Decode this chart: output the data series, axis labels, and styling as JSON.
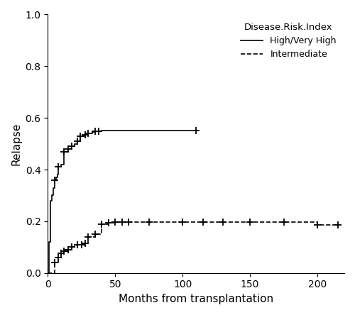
{
  "title": "",
  "xlabel": "Months from transplantation",
  "ylabel": "Relapse",
  "legend_title": "Disease.Risk.Index",
  "legend_labels": [
    "High/Very High",
    "Intermediate"
  ],
  "xlim": [
    0,
    220
  ],
  "ylim": [
    0,
    1.0
  ],
  "xticks": [
    0,
    50,
    100,
    150,
    200
  ],
  "yticks": [
    0.0,
    0.2,
    0.4,
    0.6,
    0.8,
    1.0
  ],
  "high_x": [
    0,
    1,
    2,
    3,
    4,
    5,
    6,
    7,
    8,
    10,
    12,
    15,
    18,
    20,
    22,
    24,
    27,
    30,
    33,
    35,
    38,
    40,
    43,
    47,
    110
  ],
  "high_y": [
    0,
    0.12,
    0.28,
    0.3,
    0.33,
    0.36,
    0.37,
    0.38,
    0.41,
    0.42,
    0.47,
    0.48,
    0.49,
    0.5,
    0.51,
    0.53,
    0.535,
    0.54,
    0.545,
    0.548,
    0.549,
    0.55,
    0.551,
    0.551,
    0.551
  ],
  "high_censor_x": [
    5,
    8,
    12,
    15,
    18,
    22,
    24,
    28,
    30,
    35,
    38,
    110
  ],
  "high_censor_y": [
    0.36,
    0.41,
    0.47,
    0.48,
    0.49,
    0.51,
    0.53,
    0.535,
    0.54,
    0.548,
    0.549,
    0.551
  ],
  "int_x": [
    0,
    5,
    8,
    10,
    12,
    15,
    18,
    20,
    22,
    24,
    27,
    30,
    35,
    40,
    45,
    50,
    60,
    75,
    100,
    115,
    130,
    150,
    175,
    200,
    215
  ],
  "int_y": [
    0,
    0.04,
    0.06,
    0.075,
    0.085,
    0.09,
    0.1,
    0.105,
    0.108,
    0.11,
    0.115,
    0.14,
    0.15,
    0.19,
    0.195,
    0.197,
    0.197,
    0.197,
    0.197,
    0.197,
    0.197,
    0.197,
    0.197,
    0.185,
    0.185
  ],
  "int_censor_x": [
    5,
    8,
    10,
    12,
    15,
    18,
    22,
    25,
    28,
    30,
    35,
    40,
    45,
    50,
    55,
    60,
    75,
    100,
    115,
    130,
    150,
    175,
    200,
    215
  ],
  "int_censor_y": [
    0.04,
    0.06,
    0.075,
    0.085,
    0.09,
    0.1,
    0.108,
    0.11,
    0.115,
    0.14,
    0.15,
    0.19,
    0.195,
    0.197,
    0.197,
    0.197,
    0.197,
    0.197,
    0.197,
    0.197,
    0.197,
    0.197,
    0.185,
    0.185
  ],
  "line_color": "#000000",
  "bg_color": "#ffffff",
  "axis_color": "#000000"
}
